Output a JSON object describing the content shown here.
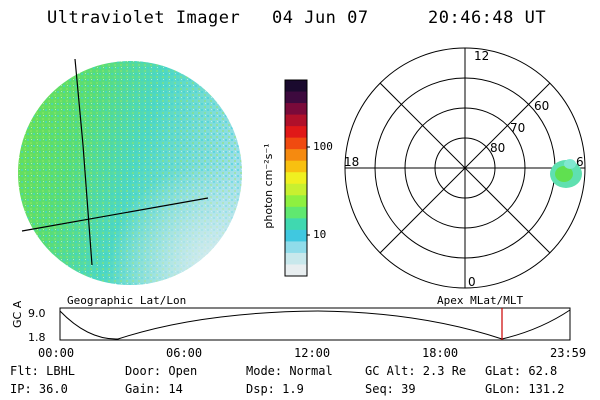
{
  "header": {
    "title": "Ultraviolet Imager",
    "date": "04 Jun 07",
    "time": "20:46:48 UT"
  },
  "colorbar": {
    "label": "photon cm⁻²s⁻¹",
    "ticks": [
      "100",
      "10"
    ],
    "colors": [
      "#1a0a2e",
      "#3d0a3e",
      "#7a0a3a",
      "#b0102a",
      "#e01818",
      "#f04a10",
      "#f58a10",
      "#f8c010",
      "#f0f020",
      "#c8f030",
      "#8ef040",
      "#60e870",
      "#40d8b0",
      "#40c8e0",
      "#90dcea",
      "#c8e8ec",
      "#e8eef0"
    ]
  },
  "polar": {
    "labels": [
      "12",
      "60",
      "70",
      "80",
      "18",
      "6",
      "0"
    ]
  },
  "timeline": {
    "ylabel": "GC Alt",
    "yticks": [
      "9.0",
      "1.8"
    ],
    "left_label": "Geographic Lat/Lon",
    "right_label": "Apex  MLat/MLT",
    "xticks": [
      "00:00",
      "06:00",
      "12:00",
      "18:00",
      "23:59"
    ],
    "marker_color": "#cc0000"
  },
  "status": {
    "filter": "Flt: LBHL",
    "ip": "IP: 36.0",
    "door": "Door: Open",
    "gain": "Gain: 14",
    "mode": "Mode: Normal",
    "dsp": "Dsp:    1.9",
    "gc_alt": "GC Alt: 2.3 Re",
    "seq": "Seq: 39",
    "glat": "GLat:  62.8",
    "glon": "GLon: 131.2"
  }
}
